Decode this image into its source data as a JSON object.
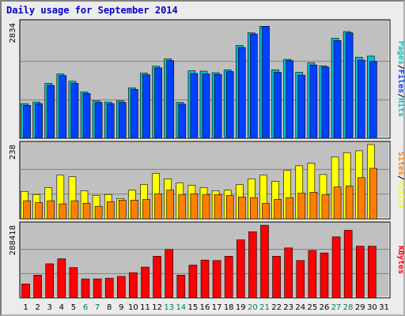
{
  "title": "Daily usage for September 2014",
  "colors": {
    "hits": "#00c0d0",
    "files": "#0040ff",
    "pages": "#00c8c8",
    "visits": "#ffff00",
    "sites": "#ff8000",
    "kbytes": "#ff0000",
    "weekend": "#00805c",
    "weekday": "#000000",
    "panel": "#c0c0c0",
    "grid": "#808080"
  },
  "chart_data": [
    {
      "type": "bar",
      "panel": "pages-files-hits",
      "ylabel_parts": [
        "Pages",
        "Files",
        "Hits"
      ],
      "max_label": "2834",
      "ylim": [
        0,
        2834
      ],
      "categories": [
        "1",
        "2",
        "3",
        "4",
        "5",
        "6",
        "7",
        "8",
        "9",
        "10",
        "11",
        "12",
        "13",
        "14",
        "15",
        "16",
        "17",
        "18",
        "19",
        "20",
        "21",
        "22",
        "23",
        "24",
        "25",
        "26",
        "27",
        "28",
        "29",
        "30",
        "31"
      ],
      "series": [
        {
          "name": "Hits",
          "values": [
            850,
            890,
            1350,
            1580,
            1400,
            1140,
            920,
            890,
            920,
            1240,
            1600,
            1770,
            1950,
            880,
            1660,
            1650,
            1610,
            1680,
            2280,
            2590,
            2750,
            1680,
            1940,
            1620,
            1850,
            1780,
            2460,
            2620,
            1990,
            2020,
            null
          ]
        },
        {
          "name": "Files",
          "values": [
            810,
            850,
            1300,
            1540,
            1350,
            1100,
            880,
            850,
            880,
            1200,
            1560,
            1730,
            1910,
            840,
            1590,
            1580,
            1570,
            1640,
            2230,
            2560,
            2750,
            1620,
            1910,
            1550,
            1800,
            1750,
            2400,
            2590,
            1920,
            1890,
            null
          ]
        }
      ]
    },
    {
      "type": "bar",
      "panel": "sites-visits",
      "ylabel_parts": [
        "Sites",
        "Visits"
      ],
      "max_label": "238",
      "ylim": [
        0,
        238
      ],
      "categories": [
        "1",
        "2",
        "3",
        "4",
        "5",
        "6",
        "7",
        "8",
        "9",
        "10",
        "11",
        "12",
        "13",
        "14",
        "15",
        "16",
        "17",
        "18",
        "19",
        "20",
        "21",
        "22",
        "23",
        "24",
        "25",
        "26",
        "27",
        "28",
        "29",
        "30",
        "31"
      ],
      "series": [
        {
          "name": "Visits",
          "values": [
            88,
            78,
            100,
            140,
            135,
            90,
            75,
            78,
            65,
            92,
            110,
            145,
            128,
            115,
            108,
            100,
            90,
            92,
            110,
            128,
            140,
            120,
            155,
            170,
            178,
            142,
            198,
            212,
            218,
            238,
            null
          ]
        },
        {
          "name": "Sites",
          "values": [
            58,
            52,
            58,
            48,
            58,
            50,
            40,
            55,
            60,
            60,
            62,
            80,
            92,
            78,
            80,
            78,
            78,
            75,
            70,
            68,
            50,
            62,
            68,
            82,
            85,
            78,
            102,
            105,
            132,
            162,
            null
          ]
        }
      ]
    },
    {
      "type": "bar",
      "panel": "kbytes",
      "ylabel_parts": [
        "KBytes"
      ],
      "max_label": "288418",
      "ylim": [
        0,
        288418
      ],
      "categories": [
        "1",
        "2",
        "3",
        "4",
        "5",
        "6",
        "7",
        "8",
        "9",
        "10",
        "11",
        "12",
        "13",
        "14",
        "15",
        "16",
        "17",
        "18",
        "19",
        "20",
        "21",
        "22",
        "23",
        "24",
        "25",
        "26",
        "27",
        "28",
        "29",
        "30",
        "31"
      ],
      "series": [
        {
          "name": "KBytes",
          "values": [
            55000,
            90000,
            135000,
            155000,
            120000,
            75000,
            75000,
            78000,
            85000,
            100000,
            122000,
            165000,
            192000,
            90000,
            130000,
            150000,
            148000,
            165000,
            230000,
            262000,
            288000,
            165000,
            198000,
            148000,
            188000,
            178000,
            242000,
            268000,
            205000,
            205000,
            null
          ]
        }
      ]
    }
  ],
  "x_axis": {
    "labels": [
      "1",
      "2",
      "3",
      "4",
      "5",
      "6",
      "7",
      "8",
      "9",
      "10",
      "11",
      "12",
      "13",
      "14",
      "15",
      "16",
      "17",
      "18",
      "19",
      "20",
      "21",
      "22",
      "23",
      "24",
      "25",
      "26",
      "27",
      "28",
      "29",
      "30",
      "31"
    ],
    "weekend_days": [
      6,
      7,
      13,
      14,
      20,
      21,
      27,
      28
    ]
  }
}
